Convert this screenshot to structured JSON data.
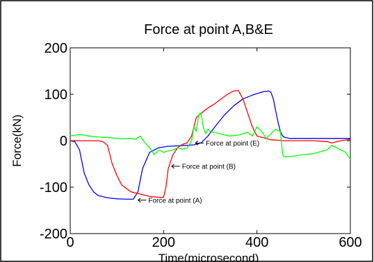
{
  "chart_data": {
    "type": "line",
    "title": "Force at point A,B&E",
    "xlabel": "Time(microsecond)",
    "ylabel": "Force(kN)",
    "xlim": [
      0,
      600
    ],
    "ylim": [
      -200,
      200
    ],
    "xticks": [
      0,
      200,
      400,
      600
    ],
    "yticks": [
      200,
      100,
      0,
      -100,
      -200
    ],
    "xtick_labels": [
      "0",
      "200",
      "400",
      "600"
    ],
    "ytick_labels": [
      "200",
      "100",
      "0",
      "-100",
      "-200"
    ],
    "grid": false,
    "series": [
      {
        "color": "#0000ff",
        "x": [
          0,
          10,
          20,
          25,
          30,
          40,
          50,
          60,
          80,
          100,
          120,
          135,
          145,
          155,
          170,
          190,
          210,
          230,
          250,
          265,
          280,
          295,
          310,
          330,
          350,
          370,
          390,
          405,
          415,
          425,
          430,
          435,
          440,
          445,
          450,
          455,
          460,
          470,
          490,
          520,
          550,
          580,
          600
        ],
        "y": [
          0,
          -2,
          -20,
          -45,
          -70,
          -95,
          -110,
          -118,
          -123,
          -125,
          -126,
          -126,
          -110,
          -60,
          -25,
          -15,
          -12,
          -11,
          -10,
          -9,
          -5,
          10,
          30,
          55,
          75,
          90,
          98,
          103,
          106,
          107,
          104,
          90,
          65,
          40,
          20,
          10,
          7,
          5,
          5,
          5,
          5,
          5,
          5
        ]
      },
      {
        "color": "#ff0000",
        "x": [
          0,
          30,
          60,
          70,
          80,
          85,
          90,
          100,
          110,
          130,
          150,
          170,
          190,
          200,
          205,
          210,
          220,
          230,
          240,
          250,
          260,
          265,
          270,
          290,
          310,
          330,
          340,
          350,
          360,
          370,
          380,
          390,
          400,
          430,
          460,
          490,
          520,
          550,
          560,
          580,
          600
        ],
        "y": [
          0,
          0,
          0,
          -2,
          -10,
          -30,
          -50,
          -75,
          -95,
          -110,
          -115,
          -120,
          -122,
          -122,
          -100,
          -60,
          -30,
          -15,
          -8,
          -5,
          10,
          30,
          50,
          67,
          80,
          95,
          102,
          107,
          108,
          90,
          60,
          30,
          10,
          2,
          0,
          0,
          0,
          -2,
          -5,
          0,
          3
        ]
      },
      {
        "color": "#00ff00",
        "x": [
          0,
          10,
          20,
          30,
          40,
          50,
          60,
          80,
          90,
          100,
          110,
          130,
          140,
          150,
          160,
          170,
          180,
          190,
          200,
          210,
          220,
          230,
          240,
          250,
          260,
          265,
          270,
          275,
          280,
          285,
          290,
          295,
          300,
          320,
          340,
          360,
          370,
          380,
          390,
          400,
          410,
          420,
          440,
          450,
          455,
          460,
          480,
          500,
          520,
          550,
          560,
          570,
          580,
          590,
          600
        ],
        "y": [
          10,
          12,
          13,
          12,
          10,
          9,
          8,
          7,
          6,
          5,
          4,
          5,
          3,
          10,
          -5,
          -15,
          -30,
          -20,
          -25,
          -22,
          -20,
          -15,
          -18,
          -16,
          0,
          30,
          20,
          55,
          60,
          30,
          15,
          25,
          20,
          15,
          10,
          12,
          15,
          18,
          10,
          30,
          20,
          5,
          25,
          20,
          -30,
          -35,
          -33,
          -30,
          -28,
          -20,
          -10,
          -15,
          -20,
          -25,
          -40
        ]
      }
    ],
    "annotations": [
      {
        "text": "Force at point (A)",
        "x": 145,
        "y": -128
      },
      {
        "text": "Force at point  (B)",
        "x": 217,
        "y": -55
      },
      {
        "text": "Force at point (E)",
        "x": 268,
        "y": -5
      }
    ]
  }
}
